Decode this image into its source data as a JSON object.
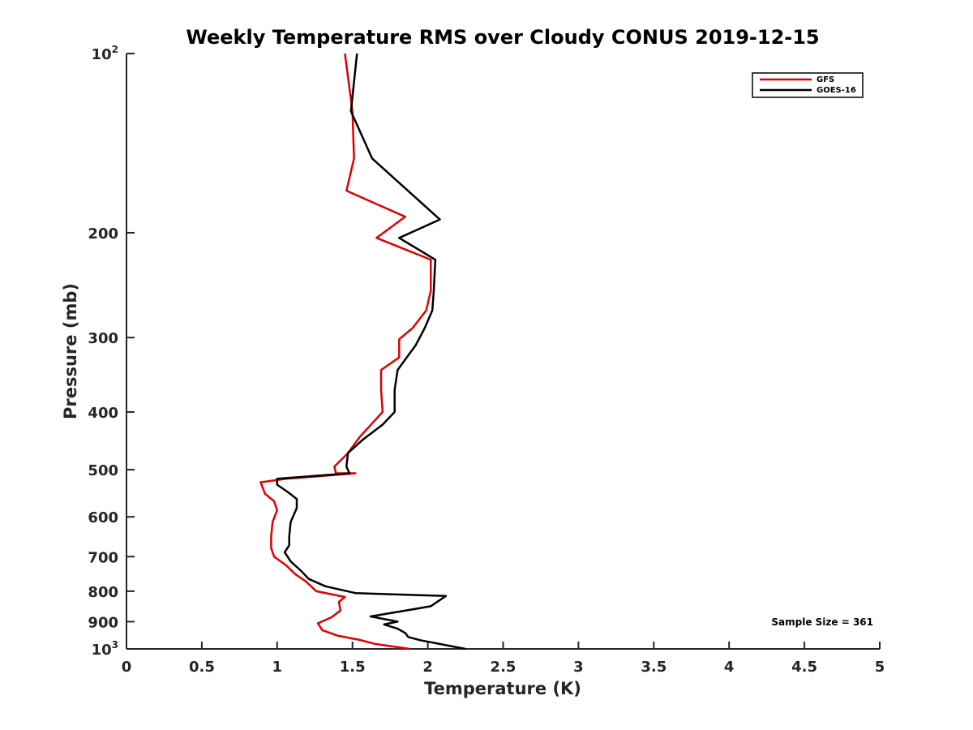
{
  "chart_data": {
    "type": "line",
    "title": "Weekly Temperature RMS over Cloudy CONUS 2019-12-15",
    "xlabel": "Temperature (K)",
    "ylabel": "Pressure (mb)",
    "xlim": [
      0,
      5
    ],
    "ylim": [
      1000,
      100
    ],
    "yscale": "log",
    "y_reversed": true,
    "x_ticks": [
      "0",
      "0.5",
      "1",
      "1.5",
      "2",
      "2.5",
      "3",
      "3.5",
      "4",
      "4.5",
      "5"
    ],
    "y_ticks": [
      {
        "value": 100,
        "label": "10",
        "sup": "2"
      },
      {
        "value": 200,
        "label": "200",
        "sup": ""
      },
      {
        "value": 300,
        "label": "300",
        "sup": ""
      },
      {
        "value": 400,
        "label": "400",
        "sup": ""
      },
      {
        "value": 500,
        "label": "500",
        "sup": ""
      },
      {
        "value": 600,
        "label": "600",
        "sup": ""
      },
      {
        "value": 700,
        "label": "700",
        "sup": ""
      },
      {
        "value": 800,
        "label": "800",
        "sup": ""
      },
      {
        "value": 900,
        "label": "900",
        "sup": ""
      },
      {
        "value": 1000,
        "label": "10",
        "sup": "3"
      }
    ],
    "grid": false,
    "legend_position": "top-right",
    "annotation": "Sample Size = 361",
    "series": [
      {
        "name": "GFS",
        "color": "#e00000",
        "points": [
          [
            1.45,
            100
          ],
          [
            1.5,
            125
          ],
          [
            1.51,
            150
          ],
          [
            1.46,
            170
          ],
          [
            1.85,
            188
          ],
          [
            1.66,
            204
          ],
          [
            2.02,
            222
          ],
          [
            2.02,
            250
          ],
          [
            1.99,
            270
          ],
          [
            1.9,
            289
          ],
          [
            1.81,
            302
          ],
          [
            1.81,
            324
          ],
          [
            1.69,
            340
          ],
          [
            1.69,
            367
          ],
          [
            1.7,
            400
          ],
          [
            1.55,
            440
          ],
          [
            1.47,
            469
          ],
          [
            1.38,
            494
          ],
          [
            1.39,
            507
          ],
          [
            1.52,
            507
          ],
          [
            1.06,
            518
          ],
          [
            0.89,
            525
          ],
          [
            0.92,
            549
          ],
          [
            0.98,
            565
          ],
          [
            1.0,
            585
          ],
          [
            0.97,
            612
          ],
          [
            0.96,
            647
          ],
          [
            0.96,
            677
          ],
          [
            0.98,
            700
          ],
          [
            1.06,
            724
          ],
          [
            1.12,
            749
          ],
          [
            1.19,
            770
          ],
          [
            1.26,
            800
          ],
          [
            1.45,
            818
          ],
          [
            1.41,
            834
          ],
          [
            1.42,
            862
          ],
          [
            1.36,
            885
          ],
          [
            1.27,
            906
          ],
          [
            1.3,
            930
          ],
          [
            1.4,
            950
          ],
          [
            1.55,
            966
          ],
          [
            1.65,
            981
          ],
          [
            1.88,
            1000
          ]
        ]
      },
      {
        "name": "GOES-16",
        "color": "#000000",
        "points": [
          [
            1.53,
            100
          ],
          [
            1.49,
            125
          ],
          [
            1.63,
            150
          ],
          [
            2.08,
            190
          ],
          [
            1.81,
            204
          ],
          [
            2.05,
            222
          ],
          [
            2.04,
            250
          ],
          [
            2.03,
            270
          ],
          [
            1.98,
            289
          ],
          [
            1.92,
            309
          ],
          [
            1.86,
            324
          ],
          [
            1.8,
            340
          ],
          [
            1.78,
            367
          ],
          [
            1.78,
            400
          ],
          [
            1.7,
            420
          ],
          [
            1.57,
            445
          ],
          [
            1.47,
            469
          ],
          [
            1.46,
            494
          ],
          [
            1.48,
            507
          ],
          [
            1.0,
            518
          ],
          [
            1.0,
            530
          ],
          [
            1.07,
            545
          ],
          [
            1.13,
            560
          ],
          [
            1.13,
            580
          ],
          [
            1.09,
            612
          ],
          [
            1.08,
            647
          ],
          [
            1.08,
            670
          ],
          [
            1.05,
            688
          ],
          [
            1.09,
            713
          ],
          [
            1.16,
            740
          ],
          [
            1.21,
            763
          ],
          [
            1.32,
            785
          ],
          [
            1.52,
            806
          ],
          [
            2.12,
            815
          ],
          [
            2.02,
            848
          ],
          [
            1.88,
            860
          ],
          [
            1.62,
            882
          ],
          [
            1.8,
            900
          ],
          [
            1.71,
            910
          ],
          [
            1.8,
            925
          ],
          [
            1.85,
            940
          ],
          [
            1.87,
            955
          ],
          [
            1.95,
            967
          ],
          [
            2.25,
            1000
          ]
        ]
      }
    ]
  }
}
